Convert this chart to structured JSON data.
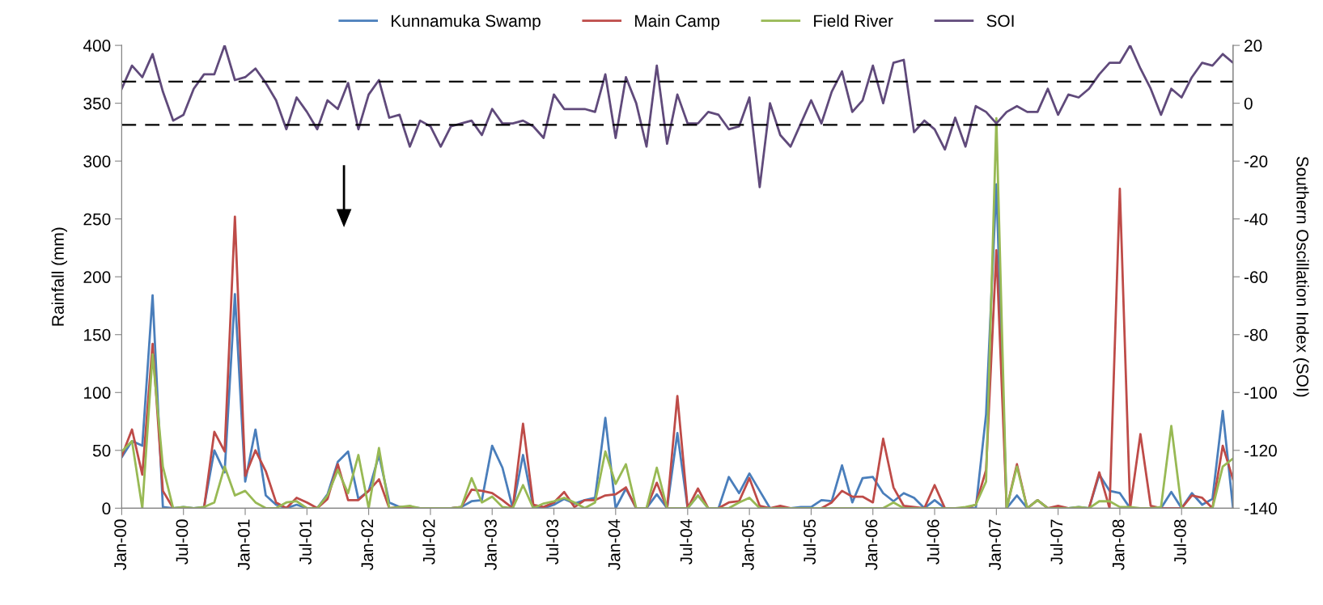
{
  "chart_data": {
    "type": "line",
    "xlabel": null,
    "ylabel": "Rainfall (mm)",
    "y2label": "Southern Oscillation Index (SOI)",
    "categories": [
      "Jan-00",
      null,
      null,
      null,
      null,
      null,
      "Jul-00",
      null,
      null,
      null,
      null,
      null,
      "Jan-01",
      null,
      null,
      null,
      null,
      null,
      "Jul-01",
      null,
      null,
      null,
      null,
      null,
      "Jan-02",
      null,
      null,
      null,
      null,
      null,
      "Jul-02",
      null,
      null,
      null,
      null,
      null,
      "Jan-03",
      null,
      null,
      null,
      null,
      null,
      "Jul-03",
      null,
      null,
      null,
      null,
      null,
      "Jan-04",
      null,
      null,
      null,
      null,
      null,
      null,
      "Jul-04",
      null,
      null,
      null,
      null,
      null,
      "Jan-05",
      null,
      null,
      null,
      null,
      null,
      "Jul-05",
      null,
      null,
      null,
      null,
      null,
      "Jan-06",
      null,
      null,
      null,
      null,
      null,
      "Jul-06",
      null,
      null,
      null,
      null,
      null,
      "Jan-07",
      null,
      null,
      null,
      null,
      null,
      "Jul-07",
      null,
      null,
      null,
      null,
      null,
      "Jan-08",
      null,
      null,
      null,
      null,
      null,
      "Jul-08",
      null,
      null,
      null,
      null,
      null
    ],
    "series": [
      {
        "name": "Kunnamuka Swamp",
        "color": "#4a7ebb",
        "values": [
          44,
          58,
          54,
          184,
          1,
          0,
          1,
          0,
          1,
          50,
          31,
          185,
          23,
          68,
          11,
          3,
          0,
          3,
          0,
          0,
          12,
          40,
          49,
          8,
          15,
          46,
          5,
          1,
          1,
          0,
          0,
          0,
          0,
          1,
          6,
          7,
          54,
          35,
          0,
          46,
          1,
          0,
          3,
          8,
          4,
          7,
          9,
          78,
          0,
          17,
          0,
          0,
          12,
          0,
          65,
          0,
          11,
          0,
          0,
          27,
          13,
          30,
          15,
          0,
          0,
          0,
          1,
          1,
          7,
          6,
          37,
          5,
          26,
          27,
          13,
          6,
          13,
          9,
          0,
          7,
          0,
          0,
          0,
          0,
          81,
          280,
          0,
          11,
          0,
          7,
          0,
          0,
          0,
          1,
          0,
          29,
          15,
          13,
          0,
          0,
          0,
          0,
          14,
          0,
          13,
          3,
          8,
          84,
          0
        ]
      },
      {
        "name": "Main Camp",
        "color": "#be4b48",
        "values": [
          45,
          68,
          29,
          142,
          15,
          0,
          0,
          0,
          0,
          66,
          49,
          252,
          28,
          50,
          32,
          5,
          0,
          9,
          5,
          0,
          8,
          38,
          7,
          7,
          15,
          25,
          0,
          1,
          0,
          0,
          0,
          0,
          0,
          1,
          16,
          15,
          13,
          7,
          0,
          73,
          3,
          1,
          5,
          14,
          1,
          7,
          7,
          11,
          12,
          18,
          0,
          0,
          22,
          0,
          97,
          0,
          17,
          0,
          0,
          5,
          6,
          26,
          2,
          0,
          2,
          0,
          0,
          0,
          0,
          5,
          15,
          10,
          10,
          5,
          60,
          18,
          2,
          1,
          0,
          20,
          0,
          0,
          0,
          3,
          33,
          223,
          0,
          38,
          0,
          7,
          0,
          2,
          0,
          0,
          0,
          31,
          0,
          276,
          0,
          64,
          2,
          0,
          0,
          0,
          11,
          9,
          0,
          54,
          25
        ]
      },
      {
        "name": "Field River",
        "color": "#98b954",
        "values": [
          49,
          58,
          0,
          133,
          36,
          0,
          1,
          0,
          1,
          5,
          36,
          11,
          15,
          5,
          0,
          0,
          5,
          6,
          0,
          0,
          11,
          33,
          13,
          46,
          0,
          52,
          0,
          1,
          2,
          0,
          0,
          0,
          0,
          1,
          26,
          5,
          10,
          1,
          0,
          20,
          0,
          4,
          6,
          9,
          5,
          0,
          5,
          49,
          21,
          38,
          0,
          0,
          35,
          0,
          0,
          0,
          11,
          0,
          0,
          0,
          5,
          9,
          0,
          0,
          0,
          0,
          0,
          0,
          0,
          0,
          0,
          0,
          0,
          0,
          0,
          5,
          0,
          0,
          0,
          0,
          0,
          0,
          1,
          3,
          23,
          337,
          0,
          36,
          0,
          7,
          0,
          0,
          0,
          1,
          0,
          6,
          6,
          1,
          1,
          0,
          0,
          1,
          71,
          0,
          0,
          0,
          0,
          36,
          43
        ]
      },
      {
        "name": "SOI",
        "color": "#604a7b",
        "axis": "y2",
        "values": [
          5,
          13,
          9,
          17,
          4,
          -6,
          -4,
          5,
          10,
          10,
          20,
          8,
          9,
          12,
          7,
          1,
          -9,
          2,
          -3,
          -9,
          1,
          -2,
          7,
          -9,
          3,
          8,
          -5,
          -4,
          -15,
          -6,
          -8,
          -15,
          -8,
          -7,
          -6,
          -11,
          -2,
          -7,
          -7,
          -6,
          -8,
          -12,
          3,
          -2,
          -2,
          -2,
          -3,
          10,
          -12,
          9,
          0,
          -15,
          13,
          -14,
          3,
          -7,
          -7,
          -3,
          -4,
          -9,
          -8,
          2,
          -29,
          0,
          -11,
          -15,
          -7,
          1,
          -7,
          4,
          11,
          -3,
          1,
          13,
          0,
          14,
          15,
          -10,
          -6,
          -9,
          -16,
          -5,
          -15,
          -1,
          -3,
          -7,
          -3,
          -1,
          -3,
          -3,
          5,
          -4,
          3,
          2,
          5,
          10,
          14,
          14,
          20,
          12,
          5,
          -4,
          5,
          2,
          9,
          14,
          13,
          17,
          14
        ]
      }
    ],
    "ylim": [
      0,
      400
    ],
    "yticks": [
      0,
      50,
      100,
      150,
      200,
      250,
      300,
      350,
      400
    ],
    "y2lim": [
      -140,
      20
    ],
    "y2ticks": [
      -140,
      -120,
      -100,
      -80,
      -60,
      -40,
      -20,
      0,
      20
    ],
    "ref_lines": [
      {
        "axis": "y2",
        "value": 7.5,
        "color": "#000000",
        "line_style": "dashed"
      },
      {
        "axis": "y2",
        "value": -7.5,
        "color": "#000000",
        "line_style": "dashed"
      }
    ],
    "grid": false,
    "legend": "top",
    "marker": "none",
    "line_style": "solid"
  }
}
